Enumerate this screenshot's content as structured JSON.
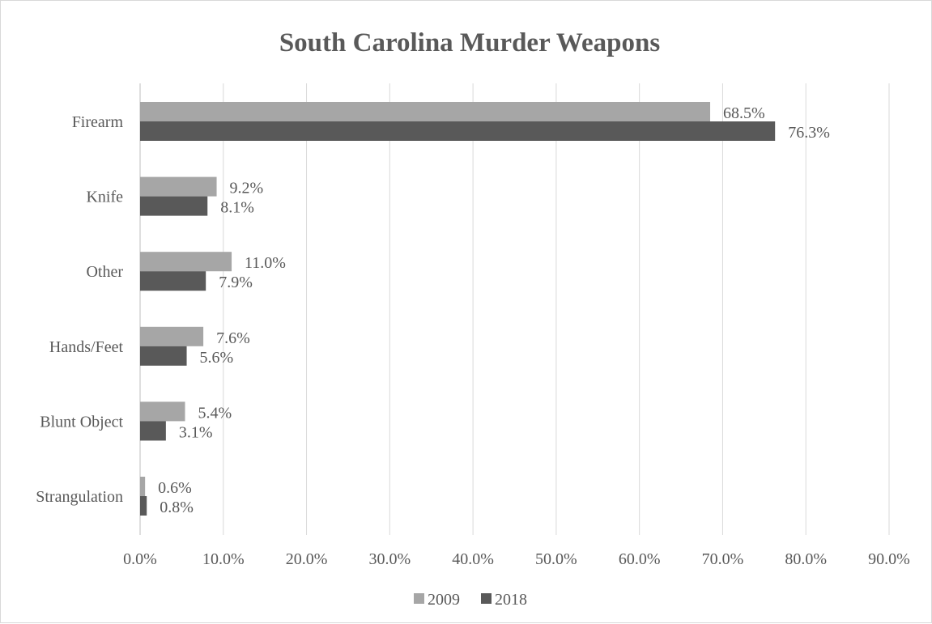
{
  "chart_data": {
    "type": "bar",
    "orientation": "horizontal",
    "title": "South Carolina Murder Weapons",
    "categories": [
      "Firearm",
      "Knife",
      "Other",
      "Hands/Feet",
      "Blunt Object",
      "Strangulation"
    ],
    "series": [
      {
        "name": "2009",
        "color": "#a6a6a6",
        "values": [
          68.5,
          9.2,
          11.0,
          7.6,
          5.4,
          0.6
        ]
      },
      {
        "name": "2018",
        "color": "#595959",
        "values": [
          76.3,
          8.1,
          7.9,
          5.6,
          3.1,
          0.8
        ]
      }
    ],
    "xlim": [
      0,
      90
    ],
    "xticks": [
      0,
      10,
      20,
      30,
      40,
      50,
      60,
      70,
      80,
      90
    ],
    "tick_labels": [
      "0.0%",
      "10.0%",
      "20.0%",
      "30.0%",
      "40.0%",
      "50.0%",
      "60.0%",
      "70.0%",
      "80.0%",
      "90.0%"
    ],
    "data_labels": [
      [
        "68.5%",
        "9.2%",
        "11.0%",
        "7.6%",
        "5.4%",
        "0.6%"
      ],
      [
        "76.3%",
        "8.1%",
        "7.9%",
        "5.6%",
        "3.1%",
        "0.8%"
      ]
    ],
    "grid": "vertical",
    "legend_position": "bottom"
  }
}
